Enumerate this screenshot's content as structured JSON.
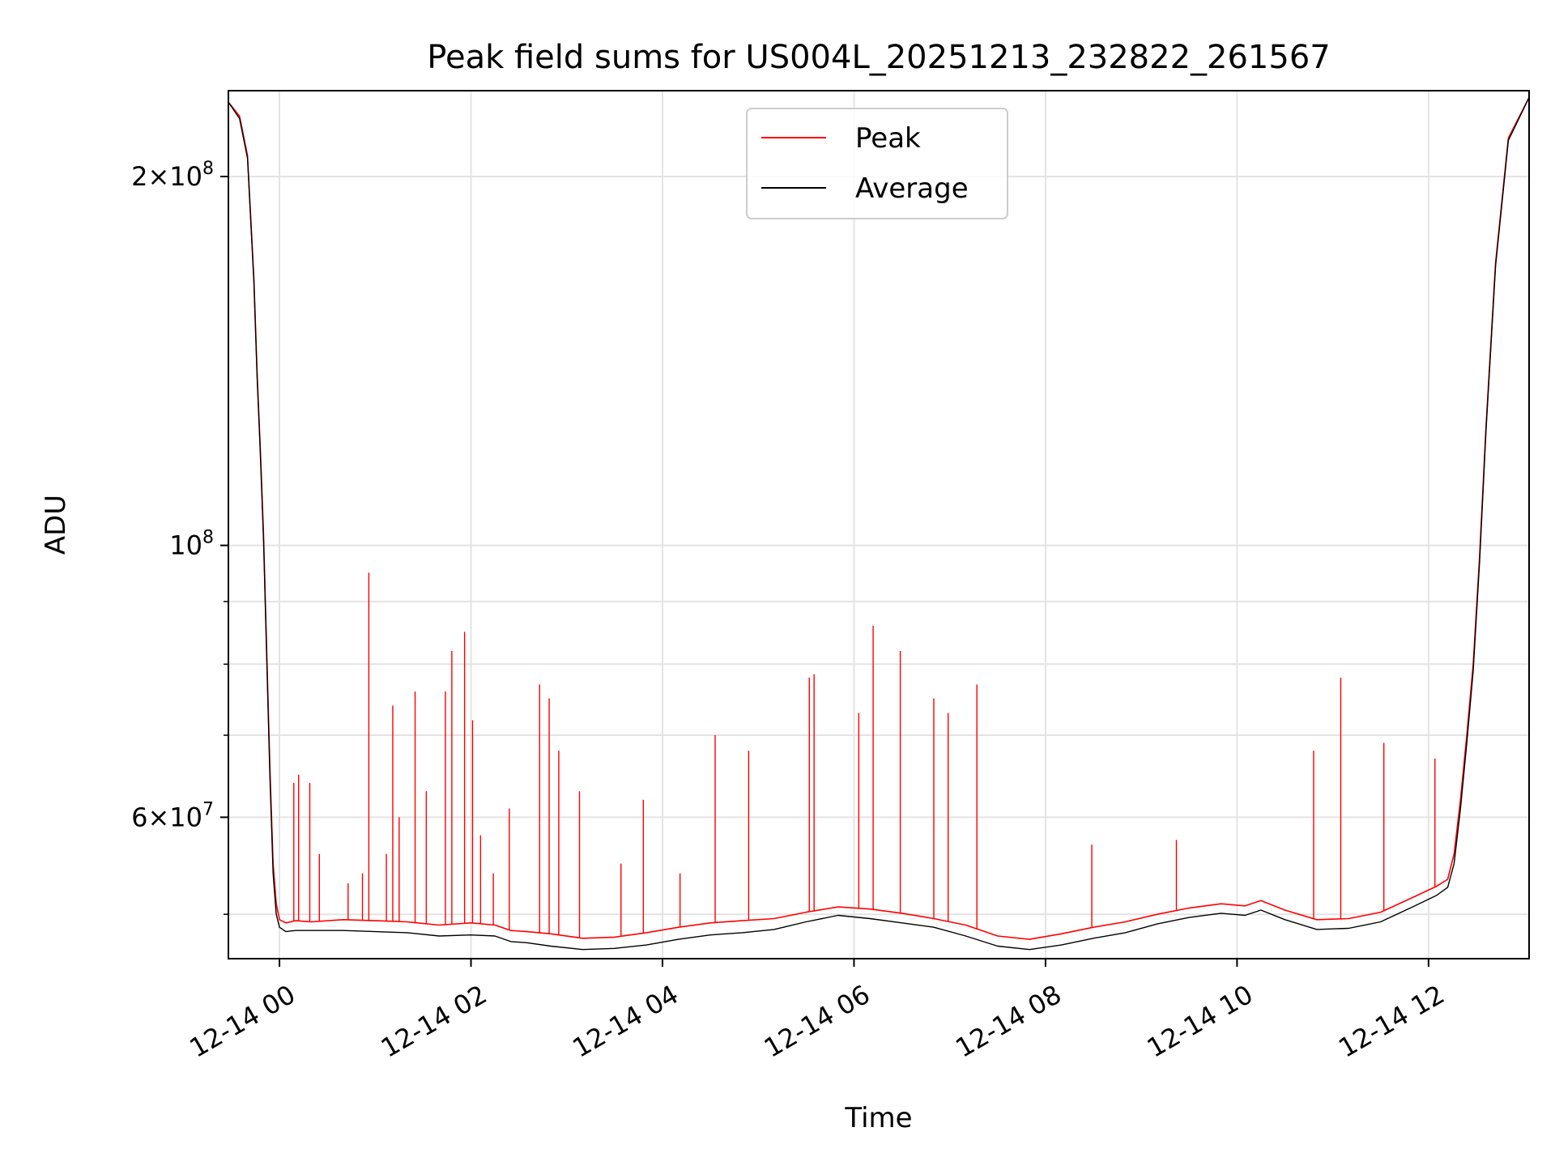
{
  "chart_data": {
    "type": "line",
    "title": "Peak field sums for US004L_20251213_232822_261567",
    "xlabel": "Time",
    "ylabel": "ADU",
    "x_axis_type": "time",
    "y_scale": "log",
    "xlim": [
      "2025-12-13T23:28",
      "2025-12-14T13:03"
    ],
    "ylim": [
      46000000,
      235000000
    ],
    "x_ticks": [
      {
        "value": "2025-12-14T00:00",
        "label": "12-14 00"
      },
      {
        "value": "2025-12-14T02:00",
        "label": "12-14 02"
      },
      {
        "value": "2025-12-14T04:00",
        "label": "12-14 04"
      },
      {
        "value": "2025-12-14T06:00",
        "label": "12-14 06"
      },
      {
        "value": "2025-12-14T08:00",
        "label": "12-14 08"
      },
      {
        "value": "2025-12-14T10:00",
        "label": "12-14 10"
      },
      {
        "value": "2025-12-14T12:00",
        "label": "12-14 12"
      }
    ],
    "y_major_ticks": [
      {
        "value": 60000000,
        "base": "6",
        "exp": "7"
      },
      {
        "value": 100000000,
        "base": "",
        "exp": "8"
      },
      {
        "value": 200000000,
        "base": "2",
        "exp": "8"
      }
    ],
    "y_minor_ticks": [
      50000000,
      70000000,
      80000000,
      90000000
    ],
    "grid": true,
    "legend_position": "upper-center",
    "colors": {
      "peak": "#ff0000",
      "average": "#000000",
      "grid": "#e3e3e3",
      "legend_border": "#cccccc"
    },
    "series": [
      {
        "name": "Peak",
        "color": "#ff0000",
        "x": [
          "2025-12-13T23:28",
          "2025-12-13T23:35",
          "2025-12-13T23:40",
          "2025-12-13T23:44",
          "2025-12-13T23:46",
          "2025-12-13T23:48",
          "2025-12-13T23:50",
          "2025-12-13T23:52",
          "2025-12-13T23:54",
          "2025-12-13T23:56",
          "2025-12-13T23:58",
          "2025-12-14T00:00",
          "2025-12-14T00:04",
          "2025-12-14T00:10",
          "2025-12-14T00:20",
          "2025-12-14T00:40",
          "2025-12-14T01:00",
          "2025-12-14T01:20",
          "2025-12-14T01:40",
          "2025-12-14T02:00",
          "2025-12-14T02:15",
          "2025-12-14T02:25",
          "2025-12-14T02:35",
          "2025-12-14T02:50",
          "2025-12-14T03:10",
          "2025-12-14T03:30",
          "2025-12-14T03:50",
          "2025-12-14T04:10",
          "2025-12-14T04:30",
          "2025-12-14T04:50",
          "2025-12-14T05:10",
          "2025-12-14T05:30",
          "2025-12-14T05:50",
          "2025-12-14T06:10",
          "2025-12-14T06:30",
          "2025-12-14T06:50",
          "2025-12-14T07:10",
          "2025-12-14T07:30",
          "2025-12-14T07:50",
          "2025-12-14T08:10",
          "2025-12-14T08:30",
          "2025-12-14T08:50",
          "2025-12-14T09:10",
          "2025-12-14T09:30",
          "2025-12-14T09:50",
          "2025-12-14T10:05",
          "2025-12-14T10:15",
          "2025-12-14T10:30",
          "2025-12-14T10:50",
          "2025-12-14T11:10",
          "2025-12-14T11:30",
          "2025-12-14T11:50",
          "2025-12-14T12:05",
          "2025-12-14T12:12",
          "2025-12-14T12:16",
          "2025-12-14T12:20",
          "2025-12-14T12:24",
          "2025-12-14T12:28",
          "2025-12-14T12:32",
          "2025-12-14T12:36",
          "2025-12-14T12:42",
          "2025-12-14T12:50",
          "2025-12-14T13:03"
        ],
        "values": [
          230000000,
          224000000,
          208000000,
          165000000,
          138000000,
          120000000,
          102000000,
          82000000,
          66000000,
          55000000,
          51000000,
          49500000,
          49200000,
          49400000,
          49300000,
          49500000,
          49400000,
          49300000,
          49000000,
          49200000,
          49000000,
          48500000,
          48400000,
          48200000,
          47800000,
          47900000,
          48300000,
          48800000,
          49200000,
          49400000,
          49600000,
          50200000,
          50700000,
          50500000,
          50100000,
          49600000,
          49000000,
          48000000,
          47700000,
          48200000,
          48800000,
          49300000,
          50000000,
          50600000,
          51000000,
          50800000,
          51300000,
          50400000,
          49500000,
          49600000,
          50200000,
          51600000,
          52700000,
          53400000,
          56000000,
          62000000,
          70000000,
          80000000,
          98000000,
          125000000,
          170000000,
          215000000,
          232000000
        ]
      },
      {
        "name": "Average",
        "color": "#000000",
        "x": [
          "2025-12-13T23:28",
          "2025-12-13T23:35",
          "2025-12-13T23:40",
          "2025-12-13T23:44",
          "2025-12-13T23:46",
          "2025-12-13T23:48",
          "2025-12-13T23:50",
          "2025-12-13T23:52",
          "2025-12-13T23:54",
          "2025-12-13T23:56",
          "2025-12-13T23:58",
          "2025-12-14T00:00",
          "2025-12-14T00:04",
          "2025-12-14T00:10",
          "2025-12-14T00:20",
          "2025-12-14T00:40",
          "2025-12-14T01:00",
          "2025-12-14T01:20",
          "2025-12-14T01:40",
          "2025-12-14T02:00",
          "2025-12-14T02:15",
          "2025-12-14T02:25",
          "2025-12-14T02:35",
          "2025-12-14T02:50",
          "2025-12-14T03:10",
          "2025-12-14T03:30",
          "2025-12-14T03:50",
          "2025-12-14T04:10",
          "2025-12-14T04:30",
          "2025-12-14T04:50",
          "2025-12-14T05:10",
          "2025-12-14T05:30",
          "2025-12-14T05:50",
          "2025-12-14T06:10",
          "2025-12-14T06:30",
          "2025-12-14T06:50",
          "2025-12-14T07:10",
          "2025-12-14T07:30",
          "2025-12-14T07:50",
          "2025-12-14T08:10",
          "2025-12-14T08:30",
          "2025-12-14T08:50",
          "2025-12-14T09:10",
          "2025-12-14T09:30",
          "2025-12-14T09:50",
          "2025-12-14T10:05",
          "2025-12-14T10:15",
          "2025-12-14T10:30",
          "2025-12-14T10:50",
          "2025-12-14T11:10",
          "2025-12-14T11:30",
          "2025-12-14T11:50",
          "2025-12-14T12:05",
          "2025-12-14T12:12",
          "2025-12-14T12:16",
          "2025-12-14T12:20",
          "2025-12-14T12:24",
          "2025-12-14T12:28",
          "2025-12-14T12:32",
          "2025-12-14T12:36",
          "2025-12-14T12:42",
          "2025-12-14T12:50",
          "2025-12-14T13:03"
        ],
        "values": [
          230000000,
          223000000,
          207000000,
          164000000,
          137000000,
          119000000,
          101000000,
          81000000,
          65000000,
          54000000,
          50000000,
          48800000,
          48400000,
          48500000,
          48500000,
          48500000,
          48400000,
          48300000,
          48000000,
          48100000,
          48000000,
          47500000,
          47400000,
          47100000,
          46800000,
          46900000,
          47200000,
          47700000,
          48100000,
          48300000,
          48600000,
          49300000,
          49900000,
          49600000,
          49200000,
          48800000,
          48000000,
          47100000,
          46800000,
          47200000,
          47800000,
          48300000,
          49100000,
          49700000,
          50100000,
          49900000,
          50400000,
          49500000,
          48600000,
          48700000,
          49300000,
          50700000,
          51800000,
          52600000,
          55000000,
          61000000,
          69000000,
          79000000,
          97000000,
          124000000,
          169000000,
          214000000,
          232000000
        ]
      }
    ],
    "peak_spikes": [
      {
        "x": "2025-12-14T00:09",
        "y": 64000000
      },
      {
        "x": "2025-12-14T00:12",
        "y": 65000000
      },
      {
        "x": "2025-12-14T00:19",
        "y": 64000000
      },
      {
        "x": "2025-12-14T00:25",
        "y": 56000000
      },
      {
        "x": "2025-12-14T00:43",
        "y": 53000000
      },
      {
        "x": "2025-12-14T00:52",
        "y": 54000000
      },
      {
        "x": "2025-12-14T00:56",
        "y": 95000000
      },
      {
        "x": "2025-12-14T01:07",
        "y": 56000000
      },
      {
        "x": "2025-12-14T01:11",
        "y": 74000000
      },
      {
        "x": "2025-12-14T01:15",
        "y": 60000000
      },
      {
        "x": "2025-12-14T01:25",
        "y": 76000000
      },
      {
        "x": "2025-12-14T01:32",
        "y": 63000000
      },
      {
        "x": "2025-12-14T01:44",
        "y": 76000000
      },
      {
        "x": "2025-12-14T01:48",
        "y": 82000000
      },
      {
        "x": "2025-12-14T01:56",
        "y": 85000000
      },
      {
        "x": "2025-12-14T02:01",
        "y": 72000000
      },
      {
        "x": "2025-12-14T02:06",
        "y": 58000000
      },
      {
        "x": "2025-12-14T02:14",
        "y": 54000000
      },
      {
        "x": "2025-12-14T02:24",
        "y": 61000000
      },
      {
        "x": "2025-12-14T02:43",
        "y": 77000000
      },
      {
        "x": "2025-12-14T02:49",
        "y": 75000000
      },
      {
        "x": "2025-12-14T02:55",
        "y": 68000000
      },
      {
        "x": "2025-12-14T03:08",
        "y": 63000000
      },
      {
        "x": "2025-12-14T03:34",
        "y": 55000000
      },
      {
        "x": "2025-12-14T03:48",
        "y": 62000000
      },
      {
        "x": "2025-12-14T04:11",
        "y": 54000000
      },
      {
        "x": "2025-12-14T04:33",
        "y": 70000000
      },
      {
        "x": "2025-12-14T04:54",
        "y": 68000000
      },
      {
        "x": "2025-12-14T05:32",
        "y": 78000000
      },
      {
        "x": "2025-12-14T05:35",
        "y": 78500000
      },
      {
        "x": "2025-12-14T06:03",
        "y": 73000000
      },
      {
        "x": "2025-12-14T06:12",
        "y": 86000000
      },
      {
        "x": "2025-12-14T06:29",
        "y": 82000000
      },
      {
        "x": "2025-12-14T06:50",
        "y": 75000000
      },
      {
        "x": "2025-12-14T06:59",
        "y": 73000000
      },
      {
        "x": "2025-12-14T07:17",
        "y": 77000000
      },
      {
        "x": "2025-12-14T08:29",
        "y": 57000000
      },
      {
        "x": "2025-12-14T09:22",
        "y": 57500000
      },
      {
        "x": "2025-12-14T10:48",
        "y": 68000000
      },
      {
        "x": "2025-12-14T11:05",
        "y": 78000000
      },
      {
        "x": "2025-12-14T11:32",
        "y": 69000000
      },
      {
        "x": "2025-12-14T12:04",
        "y": 67000000
      }
    ]
  }
}
